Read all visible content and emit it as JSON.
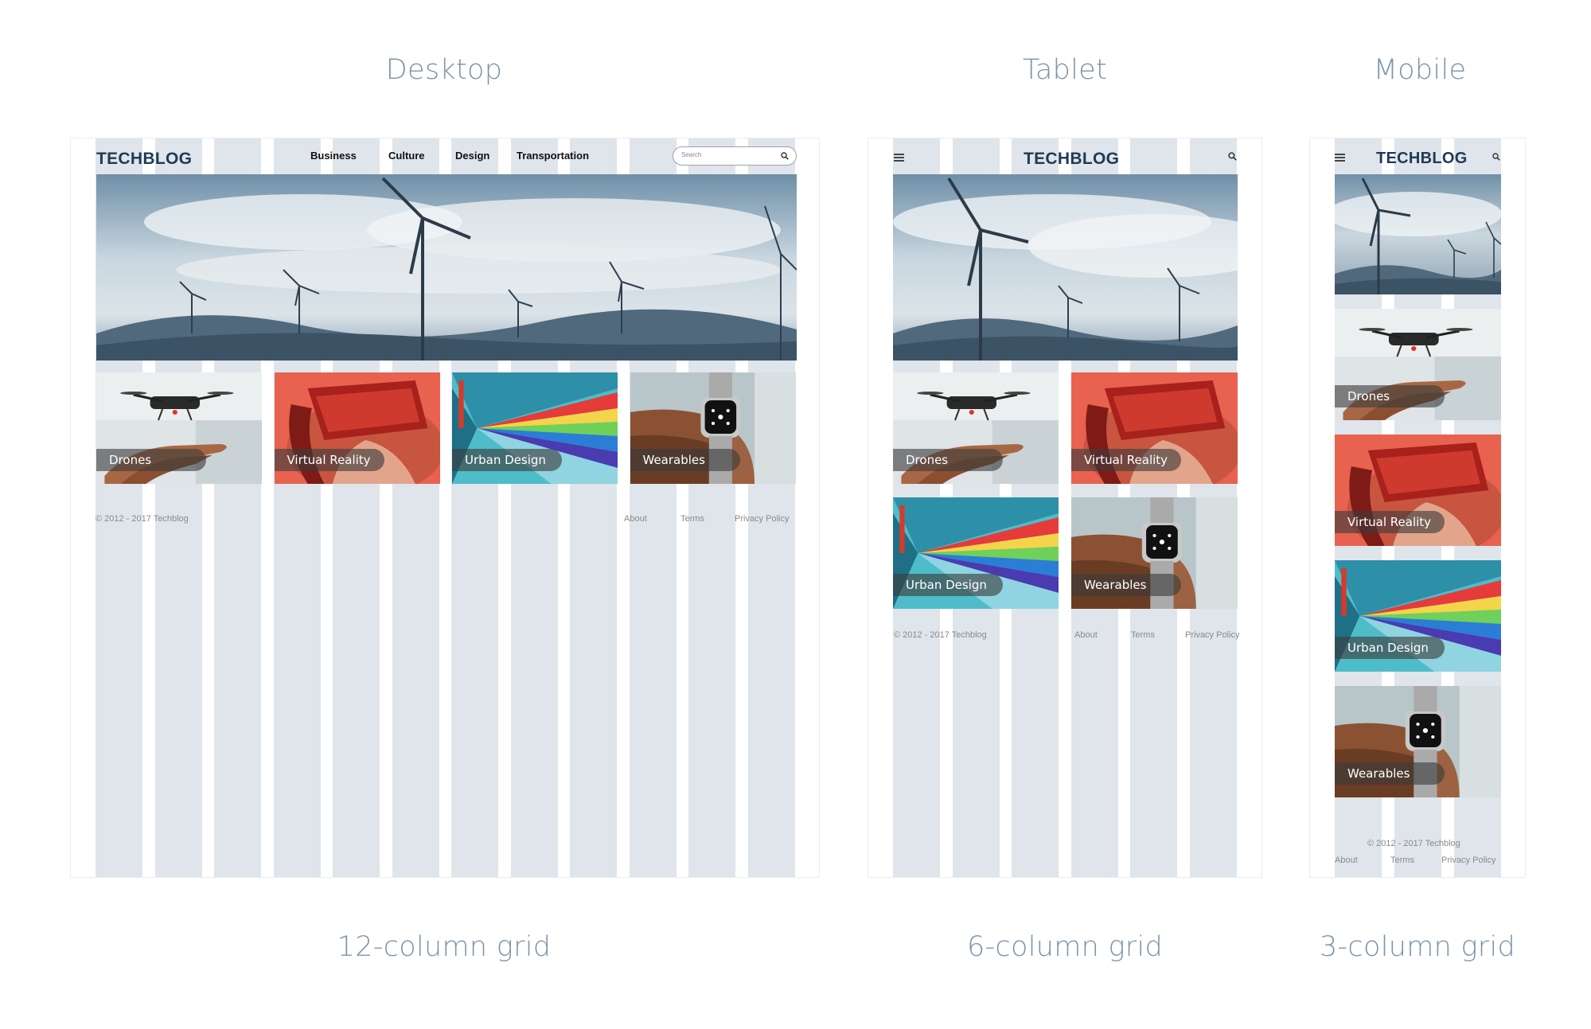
{
  "labels": {
    "desktop": "Desktop",
    "tablet": "Tablet",
    "mobile": "Mobile",
    "desktop_grid": "12-column grid",
    "tablet_grid": "6-column grid",
    "mobile_grid": "3-column grid"
  },
  "site": {
    "logo": "TECHBLOG",
    "nav": [
      "Business",
      "Culture",
      "Design",
      "Transportation"
    ],
    "search_placeholder": "Search",
    "cards": [
      "Drones",
      "Virtual Reality",
      "Urban Design",
      "Wearables"
    ],
    "copyright": "© 2012 - 2017 Techblog",
    "footer_links": [
      "About",
      "Terms",
      "Privacy Policy"
    ]
  },
  "icons": {
    "search": "search-icon",
    "menu": "hamburger-icon"
  },
  "colors": {
    "column": "#dfe5ea",
    "label": "#7c94a8",
    "logo": "#1f3a56",
    "pill": "#3c3c3c"
  }
}
